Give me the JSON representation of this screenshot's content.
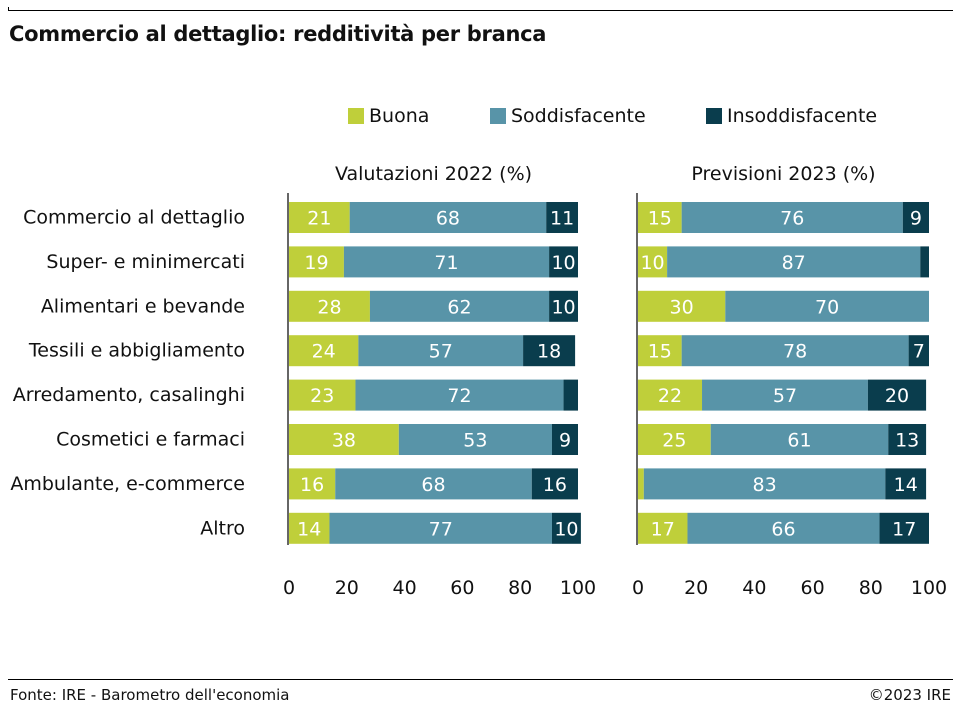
{
  "title": "Commercio al dettaglio: redditività per branca",
  "footer": {
    "source": "Fonte: IRE - Barometro dell'economia",
    "copyright": "©2023 IRE"
  },
  "colors": {
    "Buona": "#bfcf3a",
    "Soddisfacente": "#5894a8",
    "Insoddisfacente": "#0a3d4d"
  },
  "legend": [
    "Buona",
    "Soddisfacente",
    "Insoddisfacente"
  ],
  "chart_data": [
    {
      "type": "bar",
      "orientation": "horizontal",
      "stacked": true,
      "title": "Valutazioni 2022 (%)",
      "categories": [
        "Commercio al dettaglio",
        "Super- e minimercati",
        "Alimentari e bevande",
        "Tessili e abbigliamento",
        "Arredamento, casalinghi",
        "Cosmetici e farmaci",
        "Ambulante, e-commerce",
        "Altro"
      ],
      "series": [
        {
          "name": "Buona",
          "values": [
            21,
            19,
            28,
            24,
            23,
            38,
            16,
            14
          ]
        },
        {
          "name": "Soddisfacente",
          "values": [
            68,
            71,
            62,
            57,
            72,
            53,
            68,
            77
          ]
        },
        {
          "name": "Insoddisfacente",
          "values": [
            11,
            10,
            10,
            18,
            5,
            9,
            16,
            10
          ]
        }
      ],
      "labels_shown": [
        [
          true,
          true,
          true,
          true,
          true,
          true,
          true,
          true
        ],
        [
          true,
          true,
          true,
          true,
          true,
          true,
          true,
          true
        ],
        [
          true,
          true,
          true,
          true,
          false,
          true,
          true,
          true
        ]
      ],
      "xlim": [
        0,
        100
      ],
      "xticks": [
        "0",
        "20",
        "40",
        "60",
        "80",
        "100"
      ],
      "grid": false
    },
    {
      "type": "bar",
      "orientation": "horizontal",
      "stacked": true,
      "title": "Previsioni 2023 (%)",
      "categories": [
        "Commercio al dettaglio",
        "Super- e minimercati",
        "Alimentari e bevande",
        "Tessili e abbigliamento",
        "Arredamento, casalinghi",
        "Cosmetici e farmaci",
        "Ambulante, e-commerce",
        "Altro"
      ],
      "series": [
        {
          "name": "Buona",
          "values": [
            15,
            10,
            30,
            15,
            22,
            25,
            2,
            17
          ]
        },
        {
          "name": "Soddisfacente",
          "values": [
            76,
            87,
            70,
            78,
            57,
            61,
            83,
            66
          ]
        },
        {
          "name": "Insoddisfacente",
          "values": [
            9,
            3,
            0,
            7,
            20,
            13,
            14,
            17
          ]
        }
      ],
      "labels_shown": [
        [
          true,
          true,
          true,
          true,
          true,
          true,
          false,
          true
        ],
        [
          true,
          true,
          true,
          true,
          true,
          true,
          true,
          true
        ],
        [
          true,
          false,
          false,
          true,
          true,
          true,
          true,
          true
        ]
      ],
      "xlim": [
        0,
        100
      ],
      "xticks": [
        "0",
        "20",
        "40",
        "60",
        "80",
        "100"
      ],
      "grid": false
    }
  ]
}
